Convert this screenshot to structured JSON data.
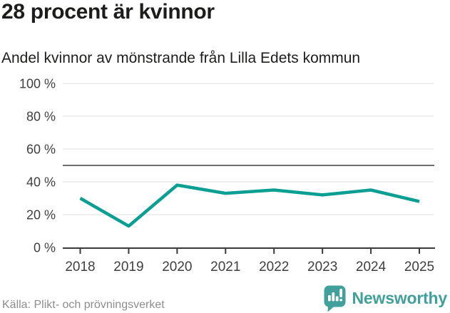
{
  "header": {
    "title": "28 procent är kvinnor",
    "subtitle": "Andel kvinnor av mönstrande från Lilla Edets kommun"
  },
  "chart_data": {
    "type": "line",
    "title": "28 procent är kvinnor",
    "subtitle": "Andel kvinnor av mönstrande från Lilla Edets kommun",
    "categories": [
      "2018",
      "2019",
      "2020",
      "2021",
      "2022",
      "2023",
      "2024",
      "2025"
    ],
    "series": [
      {
        "name": "Andel kvinnor av mönstrande",
        "values": [
          30,
          13,
          38,
          33,
          35,
          32,
          35,
          28
        ]
      }
    ],
    "unit": "%",
    "xlabel": "",
    "ylabel": "",
    "ylim": [
      0,
      100
    ],
    "y_ticks": [
      0,
      20,
      40,
      60,
      80,
      100
    ],
    "y_tick_suffix": " %",
    "reference_line": 50,
    "grid": true,
    "legend": "none",
    "colors": {
      "line": "#0b9e92",
      "grid": "#e4e4e4",
      "reference": "#6f6f6f",
      "axis": "#3a3a3a",
      "tick_label": "#3f3f3f"
    }
  },
  "footer": {
    "source": "Källa: Plikt- och prövningsverket",
    "brand": {
      "name": "Newsworthy",
      "color": "#42a09a",
      "icon": "newsworthy-chart-bubble-icon"
    }
  }
}
